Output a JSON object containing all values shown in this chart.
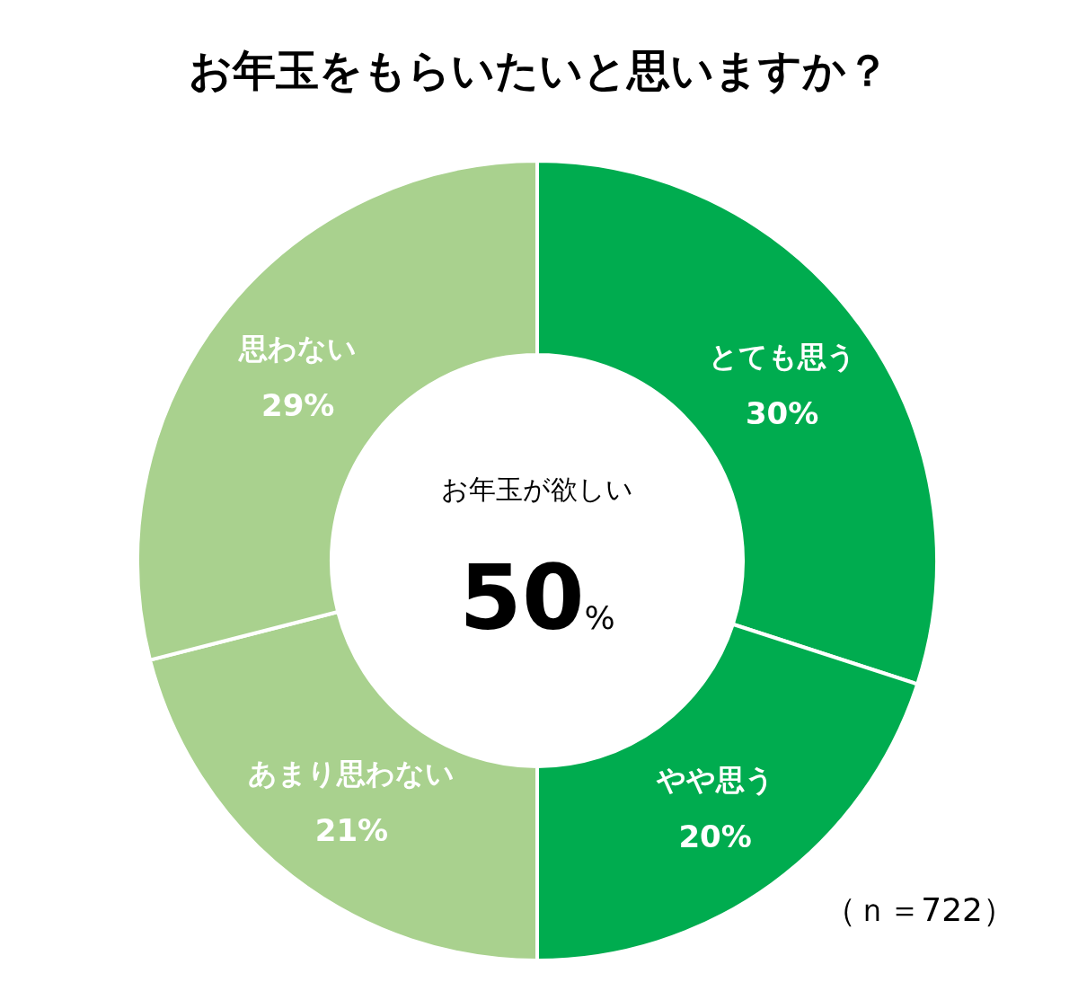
{
  "chart_data": {
    "type": "donut",
    "title": "お年玉をもらいたいと思いますか？",
    "categories": [
      "とても思う",
      "やや思う",
      "あまり思わない",
      "思わない"
    ],
    "values": [
      30,
      20,
      21,
      29
    ],
    "value_labels": [
      "30%",
      "20%",
      "21%",
      "29%"
    ],
    "colors": [
      "#00ac4f",
      "#00ac4f",
      "#a9d18e",
      "#a9d18e"
    ],
    "annotations": [
      "お年玉が欲しい",
      "50%",
      "（ｎ＝722）"
    ]
  }
}
